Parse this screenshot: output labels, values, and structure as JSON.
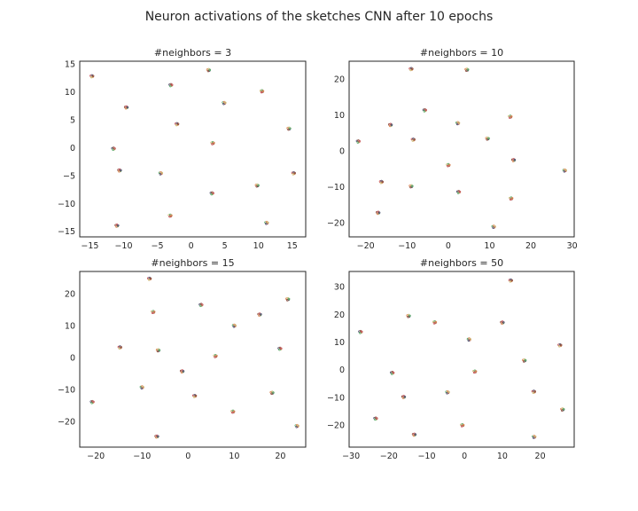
{
  "figure": {
    "title": "Neuron activations of the sketches CNN after 10 epochs"
  },
  "palette": [
    "#c44e52",
    "#dd8452",
    "#4c4c6d",
    "#ccb974",
    "#8c4c3c",
    "#55a868"
  ],
  "chart_data": [
    {
      "type": "scatter",
      "title": "#neighbors = 3",
      "xlim": [
        -16.5,
        17
      ],
      "ylim": [
        -16,
        15.5
      ],
      "xticks": [
        -15,
        -10,
        -5,
        0,
        5,
        10,
        15
      ],
      "yticks": [
        -15,
        -10,
        -5,
        0,
        5,
        10,
        15
      ],
      "points": [
        [
          -14.7,
          12.8
        ],
        [
          2.6,
          13.9
        ],
        [
          -3.0,
          11.2
        ],
        [
          10.5,
          10.1
        ],
        [
          -9.6,
          7.2
        ],
        [
          4.9,
          8.0
        ],
        [
          -2.1,
          4.2
        ],
        [
          14.5,
          3.4
        ],
        [
          -11.5,
          -0.2
        ],
        [
          3.2,
          0.8
        ],
        [
          -10.6,
          -4.1
        ],
        [
          -4.5,
          -4.6
        ],
        [
          15.2,
          -4.6
        ],
        [
          9.8,
          -6.8
        ],
        [
          3.1,
          -8.2
        ],
        [
          -3.1,
          -12.2
        ],
        [
          -11.0,
          -14.0
        ],
        [
          11.2,
          -13.5
        ]
      ]
    },
    {
      "type": "scatter",
      "title": "#neighbors = 10",
      "xlim": [
        -24,
        30.5
      ],
      "ylim": [
        -24,
        25
      ],
      "xticks": [
        -20,
        -10,
        0,
        10,
        20,
        30
      ],
      "yticks": [
        -20,
        -10,
        0,
        10,
        20
      ],
      "points": [
        [
          -9.0,
          22.8
        ],
        [
          4.5,
          22.6
        ],
        [
          -5.7,
          11.3
        ],
        [
          15.0,
          9.5
        ],
        [
          -14.0,
          7.2
        ],
        [
          2.3,
          7.7
        ],
        [
          -8.5,
          3.1
        ],
        [
          9.5,
          3.4
        ],
        [
          -21.8,
          2.6
        ],
        [
          0.0,
          -4.0
        ],
        [
          15.8,
          -2.6
        ],
        [
          28.2,
          -5.5
        ],
        [
          -16.2,
          -8.7
        ],
        [
          -9.0,
          -9.9
        ],
        [
          2.5,
          -11.5
        ],
        [
          15.2,
          -13.3
        ],
        [
          -17.0,
          -17.3
        ],
        [
          11.0,
          -21.2
        ]
      ]
    },
    {
      "type": "scatter",
      "title": "#neighbors = 15",
      "xlim": [
        -23.5,
        25.5
      ],
      "ylim": [
        -28,
        27
      ],
      "xticks": [
        -20,
        -10,
        0,
        10,
        20
      ],
      "yticks": [
        -20,
        -10,
        0,
        10,
        20
      ],
      "points": [
        [
          -8.4,
          24.7
        ],
        [
          21.6,
          18.3
        ],
        [
          2.8,
          16.5
        ],
        [
          -7.6,
          14.3
        ],
        [
          15.5,
          13.5
        ],
        [
          10.0,
          10.0
        ],
        [
          -14.8,
          3.2
        ],
        [
          -6.5,
          2.3
        ],
        [
          19.9,
          2.8
        ],
        [
          5.9,
          0.5
        ],
        [
          -1.3,
          -4.3
        ],
        [
          -10.0,
          -9.3
        ],
        [
          1.4,
          -12.0
        ],
        [
          18.2,
          -11.0
        ],
        [
          -20.8,
          -13.9
        ],
        [
          9.7,
          -16.9
        ],
        [
          -6.8,
          -24.7
        ],
        [
          23.6,
          -21.4
        ]
      ]
    },
    {
      "type": "scatter",
      "title": "#neighbors = 50",
      "xlim": [
        -30.5,
        29
      ],
      "ylim": [
        -28,
        35.5
      ],
      "xticks": [
        -30,
        -20,
        -10,
        0,
        10,
        20
      ],
      "yticks": [
        -20,
        -10,
        0,
        10,
        20,
        30
      ],
      "points": [
        [
          12.2,
          32.2
        ],
        [
          -14.8,
          19.4
        ],
        [
          -27.5,
          13.6
        ],
        [
          -7.9,
          17.1
        ],
        [
          10.0,
          17.0
        ],
        [
          1.2,
          10.9
        ],
        [
          25.2,
          8.8
        ],
        [
          15.8,
          3.3
        ],
        [
          -19.1,
          -1.2
        ],
        [
          2.7,
          -0.7
        ],
        [
          -16.1,
          -9.9
        ],
        [
          -4.5,
          -8.2
        ],
        [
          18.3,
          -8.0
        ],
        [
          25.9,
          -14.4
        ],
        [
          -23.5,
          -17.7
        ],
        [
          -0.6,
          -20.1
        ],
        [
          -13.3,
          -23.5
        ],
        [
          18.4,
          -24.3
        ]
      ]
    }
  ]
}
